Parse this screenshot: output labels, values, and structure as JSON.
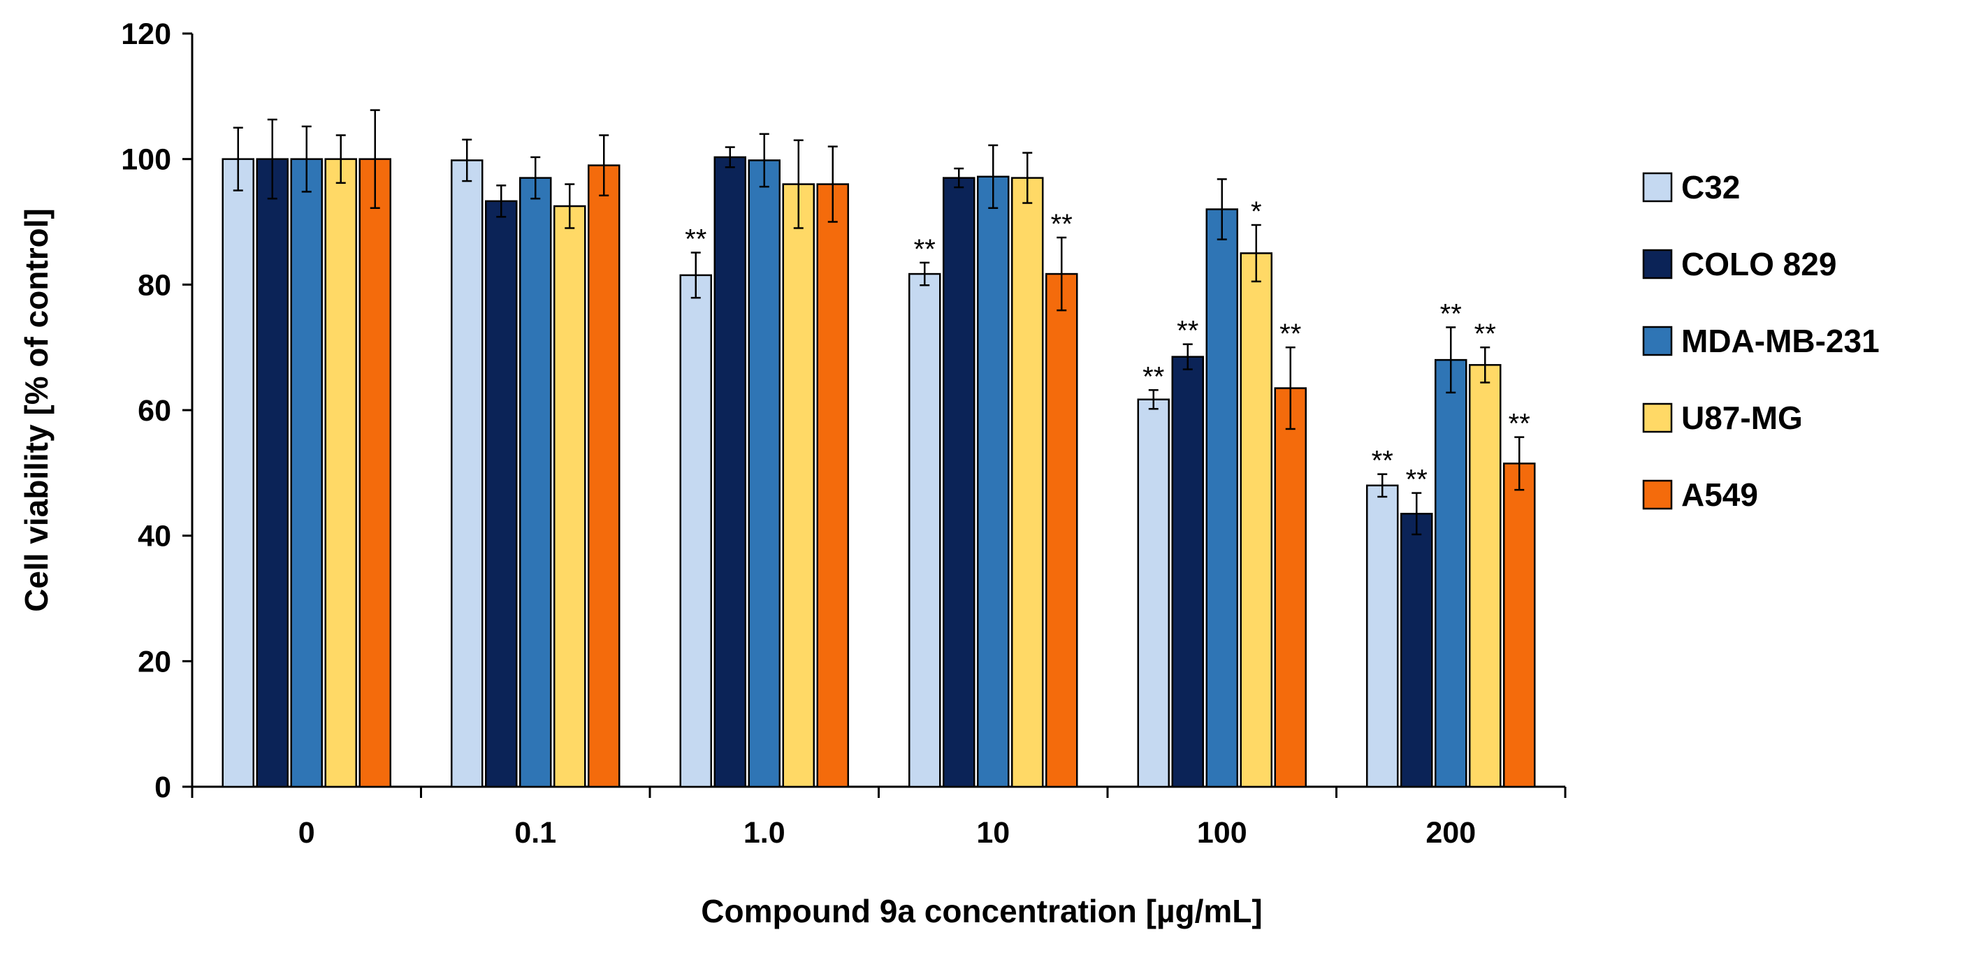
{
  "chart_data": {
    "type": "bar",
    "title": "",
    "xlabel": "Compound 9a concentration [µg/mL]",
    "ylabel": "Cell viability [% of control]",
    "ylim": [
      0,
      120
    ],
    "yticks": [
      "0",
      "20",
      "40",
      "60",
      "80",
      "100",
      "120"
    ],
    "categories": [
      "0",
      "0.1",
      "1.0",
      "10",
      "100",
      "200"
    ],
    "legend_position": "right",
    "series": [
      {
        "name": "C32",
        "color": "#c5d9f1",
        "values": [
          100,
          99.8,
          81.5,
          81.7,
          61.7,
          48.0
        ],
        "errors": [
          5.0,
          3.3,
          3.6,
          1.8,
          1.5,
          1.8
        ],
        "significance": [
          "",
          "",
          "**",
          "**",
          "**",
          "**"
        ]
      },
      {
        "name": "COLO 829",
        "color": "#0b2357",
        "values": [
          100,
          93.3,
          100.3,
          97.0,
          68.5,
          43.5
        ],
        "errors": [
          6.3,
          2.5,
          1.6,
          1.5,
          2.0,
          3.3
        ],
        "significance": [
          "",
          "",
          "",
          "",
          "**",
          "**"
        ]
      },
      {
        "name": "MDA-MB-231",
        "color": "#2f75b5",
        "values": [
          100,
          97.0,
          99.8,
          97.2,
          92.0,
          68.0
        ],
        "errors": [
          5.2,
          3.3,
          4.2,
          5.0,
          4.8,
          5.2
        ],
        "significance": [
          "",
          "",
          "",
          "",
          "",
          "**"
        ]
      },
      {
        "name": "U87-MG",
        "color": "#ffd966",
        "values": [
          100,
          92.5,
          96.0,
          97.0,
          85.0,
          67.2
        ],
        "errors": [
          3.8,
          3.5,
          7.0,
          4.0,
          4.5,
          2.8
        ],
        "significance": [
          "",
          "",
          "",
          "",
          "*",
          "**"
        ]
      },
      {
        "name": "A549",
        "color": "#f46b0c",
        "values": [
          100,
          99.0,
          96.0,
          81.7,
          63.5,
          51.5
        ],
        "errors": [
          7.8,
          4.8,
          6.0,
          5.8,
          6.5,
          4.2
        ],
        "significance": [
          "",
          "",
          "",
          "**",
          "**",
          "**"
        ]
      }
    ]
  }
}
